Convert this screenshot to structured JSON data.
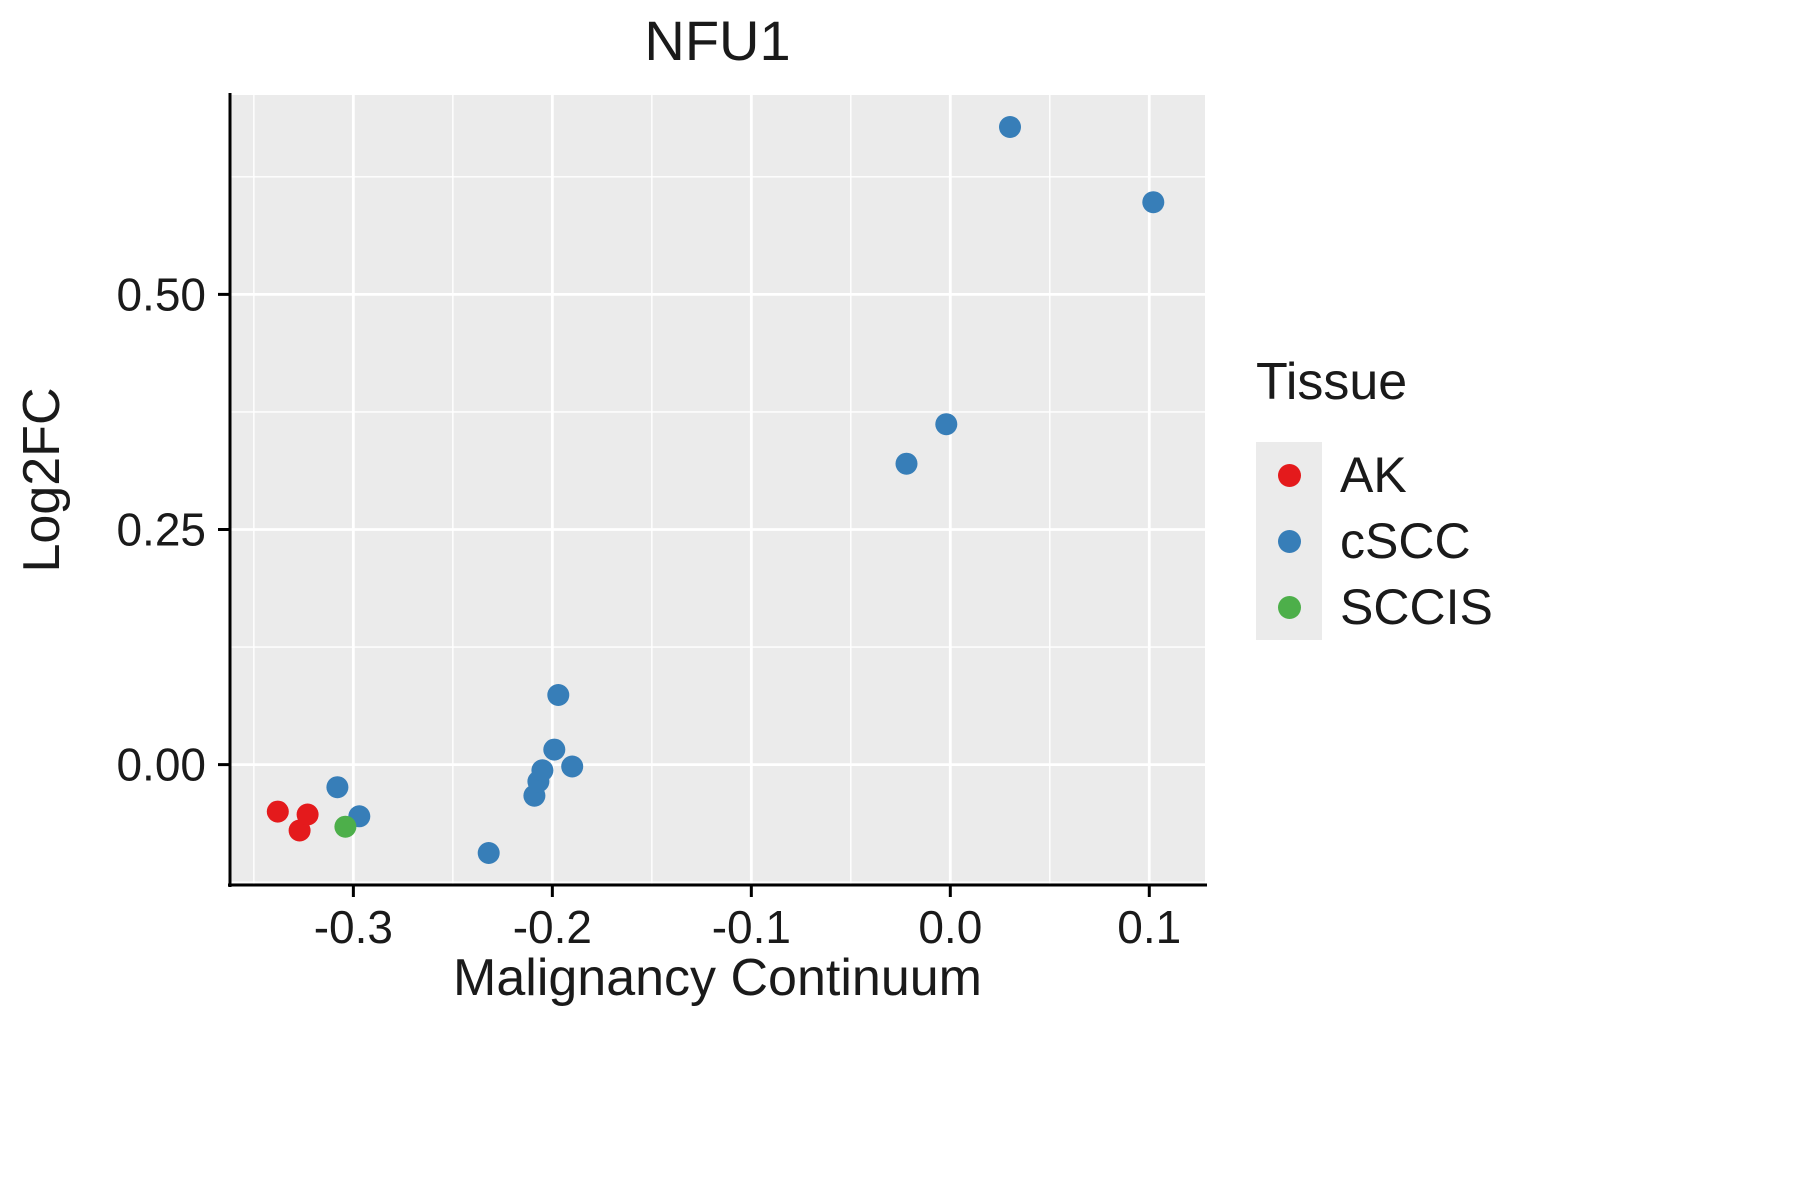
{
  "chart_data": {
    "type": "scatter",
    "title": "NFU1",
    "xlabel": "Malignancy Continuum",
    "ylabel": "Log2FC",
    "legend_title": "Tissue",
    "legend_position": "right",
    "grid": true,
    "xlim": [
      -0.362,
      0.128
    ],
    "ylim": [
      -0.128,
      0.712
    ],
    "x_ticks": [
      {
        "v": -0.3,
        "label": "-0.3"
      },
      {
        "v": -0.2,
        "label": "-0.2"
      },
      {
        "v": -0.1,
        "label": "-0.1"
      },
      {
        "v": 0.0,
        "label": "0.0"
      },
      {
        "v": 0.1,
        "label": "0.1"
      }
    ],
    "y_ticks": [
      {
        "v": 0.0,
        "label": "0.00"
      },
      {
        "v": 0.25,
        "label": "0.25"
      },
      {
        "v": 0.5,
        "label": "0.50"
      }
    ],
    "x_minor": [
      -0.35,
      -0.25,
      -0.15,
      -0.05,
      0.05
    ],
    "y_minor": [
      -0.125,
      0.125,
      0.375,
      0.625
    ],
    "point_radius": 11,
    "colors": {
      "panel_bg": "#EBEBEB",
      "grid": "#FFFFFF",
      "axis": "#000000",
      "text": "#1a1a1a"
    },
    "series": [
      {
        "name": "AK",
        "color": "#E41A1C",
        "points": [
          [
            -0.338,
            -0.05
          ],
          [
            -0.327,
            -0.07
          ],
          [
            -0.323,
            -0.053
          ]
        ]
      },
      {
        "name": "cSCC",
        "color": "#377EB8",
        "points": [
          [
            -0.308,
            -0.024
          ],
          [
            -0.297,
            -0.055
          ],
          [
            -0.232,
            -0.094
          ],
          [
            -0.209,
            -0.033
          ],
          [
            -0.207,
            -0.018
          ],
          [
            -0.205,
            -0.006
          ],
          [
            -0.199,
            0.016
          ],
          [
            -0.197,
            0.074
          ],
          [
            -0.19,
            -0.002
          ],
          [
            -0.022,
            0.32
          ],
          [
            -0.002,
            0.362
          ],
          [
            0.03,
            0.678
          ],
          [
            0.102,
            0.598
          ]
        ]
      },
      {
        "name": "SCCIS",
        "color": "#4DAF4A",
        "points": [
          [
            -0.304,
            -0.066
          ]
        ]
      }
    ]
  }
}
